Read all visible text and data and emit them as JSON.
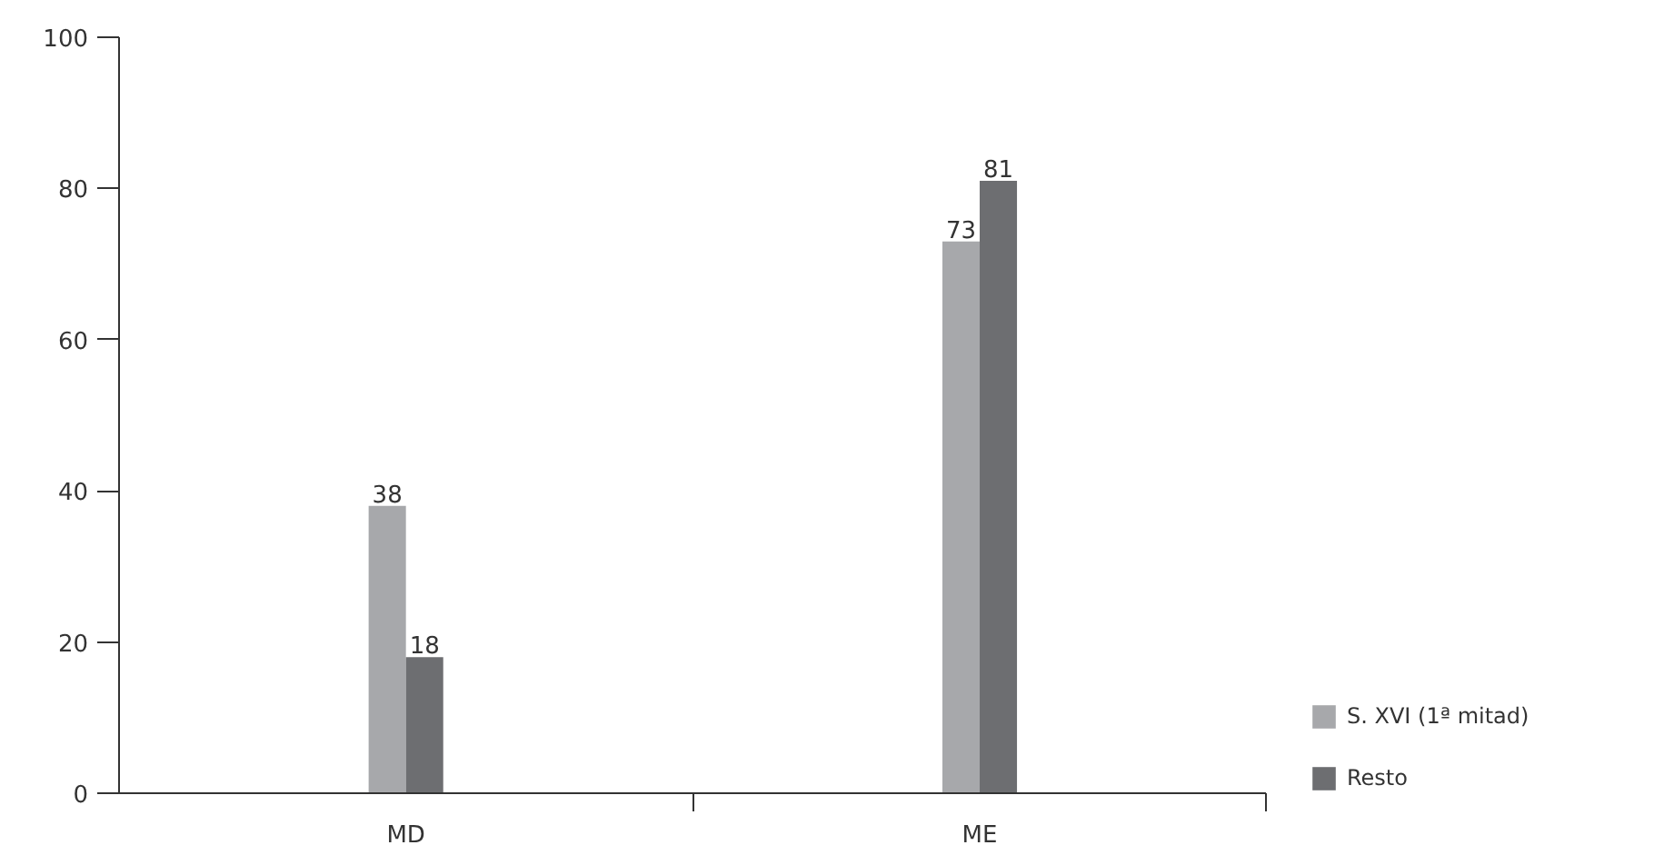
{
  "chart_data": {
    "type": "bar",
    "categories": [
      "MD",
      "ME"
    ],
    "series": [
      {
        "name": "S. XVI (1ª mitad)",
        "color": "#a7a8ab",
        "values": [
          38,
          73
        ]
      },
      {
        "name": "Resto",
        "color": "#6d6e71",
        "values": [
          18,
          81
        ]
      }
    ],
    "ylim": [
      0,
      100
    ],
    "yticks": [
      0,
      20,
      40,
      60,
      80,
      100
    ],
    "data_labels": true,
    "grid": false,
    "legend": "bottom right"
  }
}
